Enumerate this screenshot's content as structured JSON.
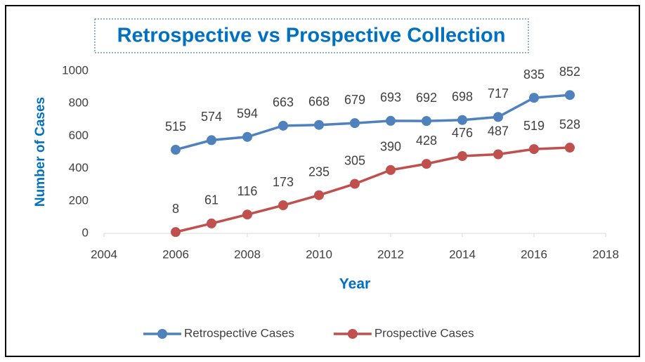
{
  "chart_data": {
    "type": "line",
    "title": "Retrospective vs Prospective Collection",
    "x_label": "Year",
    "y_label": "Number of Cases",
    "x": [
      2006,
      2007,
      2008,
      2009,
      2010,
      2011,
      2012,
      2013,
      2014,
      2015,
      2016,
      2017
    ],
    "series": [
      {
        "name": "Retrospective Cases",
        "color": "#4f81bd",
        "values": [
          515,
          574,
          594,
          663,
          668,
          679,
          693,
          692,
          698,
          717,
          835,
          852
        ]
      },
      {
        "name": "Prospective Cases",
        "color": "#c0504d",
        "values": [
          8,
          61,
          116,
          173,
          235,
          305,
          390,
          428,
          476,
          487,
          519,
          528
        ]
      }
    ],
    "xlim": [
      2004,
      2018
    ],
    "xticks": [
      2004,
      2006,
      2008,
      2010,
      2012,
      2014,
      2016,
      2018
    ],
    "ylim": [
      0,
      1000
    ],
    "yticks": [
      0,
      200,
      400,
      600,
      800,
      1000
    ],
    "grid": false,
    "legend": "bottom"
  }
}
